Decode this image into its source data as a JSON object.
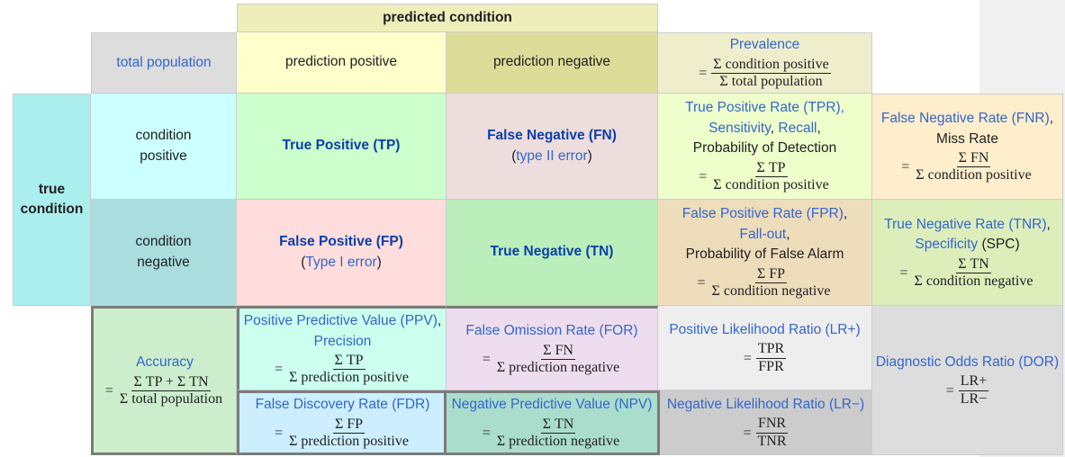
{
  "header": {
    "predicted_condition": "predicted condition",
    "true_condition_line1": "true",
    "true_condition_line2": "condition"
  },
  "labels": {
    "total_population": "total population",
    "prediction_positive": "prediction positive",
    "prediction_negative": "prediction negative",
    "condition_positive_1": "condition",
    "condition_positive_2": "positive",
    "condition_negative_1": "condition",
    "condition_negative_2": "negative"
  },
  "cells": {
    "prevalence": {
      "title": "Prevalence",
      "eq": "=",
      "num": "Σ condition positive",
      "den": "Σ total population"
    },
    "tp": {
      "title": "True Positive (TP)"
    },
    "fn": {
      "title": "False Negative (FN)",
      "note_open": "(",
      "note_link": "type II error",
      "note_close": ")"
    },
    "fp": {
      "title": "False Positive (FP)",
      "note_open": "(",
      "note_link": "Type I error",
      "note_close": ")"
    },
    "tn": {
      "title": "True Negative (TN)"
    },
    "tpr": {
      "line1": "True Positive Rate (TPR),",
      "line2a": "Sensitivity",
      "line2sep": ", ",
      "line2b": "Recall",
      "line2end": ",",
      "line3": "Probability of Detection",
      "eq": "=",
      "num": "Σ TP",
      "den": "Σ condition positive"
    },
    "fnr": {
      "line1": "False Negative Rate (FNR)",
      "line1end": ",",
      "line2": "Miss Rate",
      "eq": "=",
      "num": "Σ FN",
      "den": "Σ condition positive"
    },
    "fpr": {
      "line1": "False Positive Rate (FPR)",
      "line1end": ",",
      "line2": "Fall-out",
      "line2end": ",",
      "line3": "Probability of False Alarm",
      "eq": "=",
      "num": "Σ FP",
      "den": "Σ condition negative"
    },
    "tnr": {
      "line1": "True Negative Rate (TNR)",
      "line1end": ",",
      "line2": "Specificity",
      "line2end": " (SPC)",
      "eq": "=",
      "num": "Σ TN",
      "den": "Σ condition negative"
    },
    "accuracy": {
      "title": "Accuracy",
      "eq": "=",
      "num": "Σ TP + Σ TN",
      "den": "Σ total population"
    },
    "ppv": {
      "line1": "Positive Predictive Value (PPV)",
      "line1end": ",",
      "line2": "Precision",
      "eq": "=",
      "num": "Σ TP",
      "den": "Σ prediction positive"
    },
    "for": {
      "title": "False Omission Rate (FOR)",
      "eq": "=",
      "num": "Σ FN",
      "den": "Σ prediction negative"
    },
    "lrpos": {
      "title": "Positive Likelihood Ratio (LR+)",
      "eq": "=",
      "num": "TPR",
      "den": "FPR"
    },
    "dor": {
      "title": "Diagnostic Odds Ratio (DOR)",
      "eq": "=",
      "num": "LR+",
      "den": "LR−"
    },
    "fdr": {
      "title": "False Discovery Rate (FDR)",
      "eq": "=",
      "num": "Σ FP",
      "den": "Σ prediction positive"
    },
    "npv": {
      "title": "Negative Predictive Value (NPV)",
      "eq": "=",
      "num": "Σ TN",
      "den": "Σ prediction negative"
    },
    "lrneg": {
      "title": "Negative Likelihood Ratio (LR−)",
      "eq": "=",
      "num": "FNR",
      "den": "TNR"
    }
  },
  "colors": {
    "header_yellow": "#eeeebb",
    "grey": "#dddddd",
    "pred_pos": "#ffffcc",
    "pred_neg": "#dddd99",
    "prevalence": "#eeeecc",
    "true_cond": "#aaeeee",
    "cond_pos": "#ccffff",
    "cond_neg": "#aadddd",
    "tp": "#ccffcc",
    "fn": "#eedddd",
    "fp": "#ffdddd",
    "tn": "#bbeebb",
    "tpr": "#eeffcc",
    "fnr": "#ffeecc",
    "fpr": "#eeddbb",
    "tnr": "#ddeebb",
    "accuracy": "#cceecc",
    "ppv": "#ccffee",
    "for": "#eeddee",
    "lrpos": "#eeeeee",
    "dor": "#dddddd",
    "fdr": "#cceeff",
    "npv": "#aaddcc",
    "lrneg": "#cccccc",
    "right_strip": "#f0f0f0"
  }
}
